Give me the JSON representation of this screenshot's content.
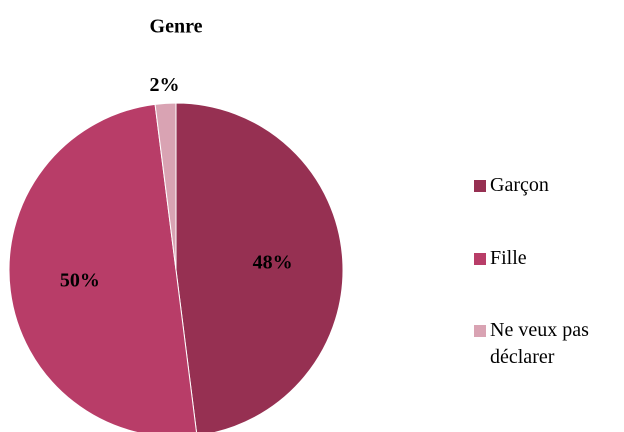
{
  "chart_data": {
    "type": "pie",
    "title": "Genre",
    "categories": [
      "Garçon",
      "Fille",
      "Ne veux pas déclarer"
    ],
    "values": [
      48,
      50,
      2
    ],
    "value_labels": [
      "48%",
      "50%",
      "2%"
    ],
    "colors": [
      "#963052",
      "#b83d68",
      "#d9a3b3"
    ]
  }
}
